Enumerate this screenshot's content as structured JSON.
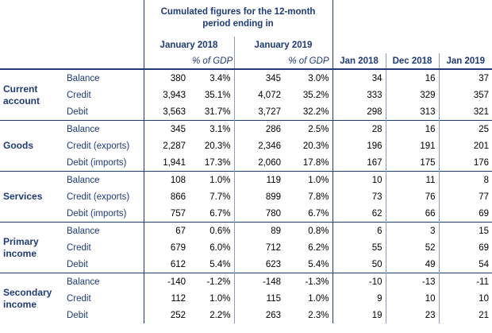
{
  "header": {
    "title_line1": "Cumulated figures for the 12-month",
    "title_line2": "period ending in",
    "period1": "January 2018",
    "period2": "January 2019",
    "gdp_label": "% of GDP",
    "months": [
      "Jan 2018",
      "Dec 2018",
      "Jan 2019"
    ]
  },
  "groups": [
    {
      "category_line1": "Current",
      "category_line2": "account",
      "rows": [
        {
          "label": "Balance",
          "v1": "380",
          "p1": "3.4%",
          "v2": "345",
          "p2": "3.0%",
          "m1": "34",
          "m2": "16",
          "m3": "37"
        },
        {
          "label": "Credit",
          "v1": "3,943",
          "p1": "35.1%",
          "v2": "4,072",
          "p2": "35.2%",
          "m1": "333",
          "m2": "329",
          "m3": "357"
        },
        {
          "label": "Debit",
          "v1": "3,563",
          "p1": "31.7%",
          "v2": "3,727",
          "p2": "32.2%",
          "m1": "298",
          "m2": "313",
          "m3": "321"
        }
      ]
    },
    {
      "category_line1": "Goods",
      "category_line2": "",
      "rows": [
        {
          "label": "Balance",
          "v1": "345",
          "p1": "3.1%",
          "v2": "286",
          "p2": "2.5%",
          "m1": "28",
          "m2": "16",
          "m3": "25"
        },
        {
          "label": "Credit (exports)",
          "v1": "2,287",
          "p1": "20.3%",
          "v2": "2,346",
          "p2": "20.3%",
          "m1": "196",
          "m2": "191",
          "m3": "201"
        },
        {
          "label": "Debit (imports)",
          "v1": "1,941",
          "p1": "17.3%",
          "v2": "2,060",
          "p2": "17.8%",
          "m1": "167",
          "m2": "175",
          "m3": "176"
        }
      ]
    },
    {
      "category_line1": "Services",
      "category_line2": "",
      "rows": [
        {
          "label": "Balance",
          "v1": "108",
          "p1": "1.0%",
          "v2": "119",
          "p2": "1.0%",
          "m1": "10",
          "m2": "11",
          "m3": "8"
        },
        {
          "label": "Credit (exports)",
          "v1": "866",
          "p1": "7.7%",
          "v2": "899",
          "p2": "7.8%",
          "m1": "73",
          "m2": "76",
          "m3": "77"
        },
        {
          "label": "Debit (imports)",
          "v1": "757",
          "p1": "6.7%",
          "v2": "780",
          "p2": "6.7%",
          "m1": "62",
          "m2": "66",
          "m3": "69"
        }
      ]
    },
    {
      "category_line1": "Primary",
      "category_line2": "income",
      "rows": [
        {
          "label": "Balance",
          "v1": "67",
          "p1": "0.6%",
          "v2": "89",
          "p2": "0.8%",
          "m1": "6",
          "m2": "3",
          "m3": "15"
        },
        {
          "label": "Credit",
          "v1": "679",
          "p1": "6.0%",
          "v2": "712",
          "p2": "6.2%",
          "m1": "55",
          "m2": "52",
          "m3": "69"
        },
        {
          "label": "Debit",
          "v1": "612",
          "p1": "5.4%",
          "v2": "623",
          "p2": "5.4%",
          "m1": "50",
          "m2": "49",
          "m3": "54"
        }
      ]
    },
    {
      "category_line1": "Secondary",
      "category_line2": "income",
      "rows": [
        {
          "label": "Balance",
          "v1": "-140",
          "p1": "-1.2%",
          "v2": "-148",
          "p2": "-1.3%",
          "m1": "-10",
          "m2": "-13",
          "m3": "-11"
        },
        {
          "label": "Credit",
          "v1": "112",
          "p1": "1.0%",
          "v2": "115",
          "p2": "1.0%",
          "m1": "9",
          "m2": "10",
          "m3": "10"
        },
        {
          "label": "Debit",
          "v1": "252",
          "p1": "2.2%",
          "v2": "263",
          "p2": "2.3%",
          "m1": "19",
          "m2": "23",
          "m3": "21"
        }
      ]
    }
  ]
}
